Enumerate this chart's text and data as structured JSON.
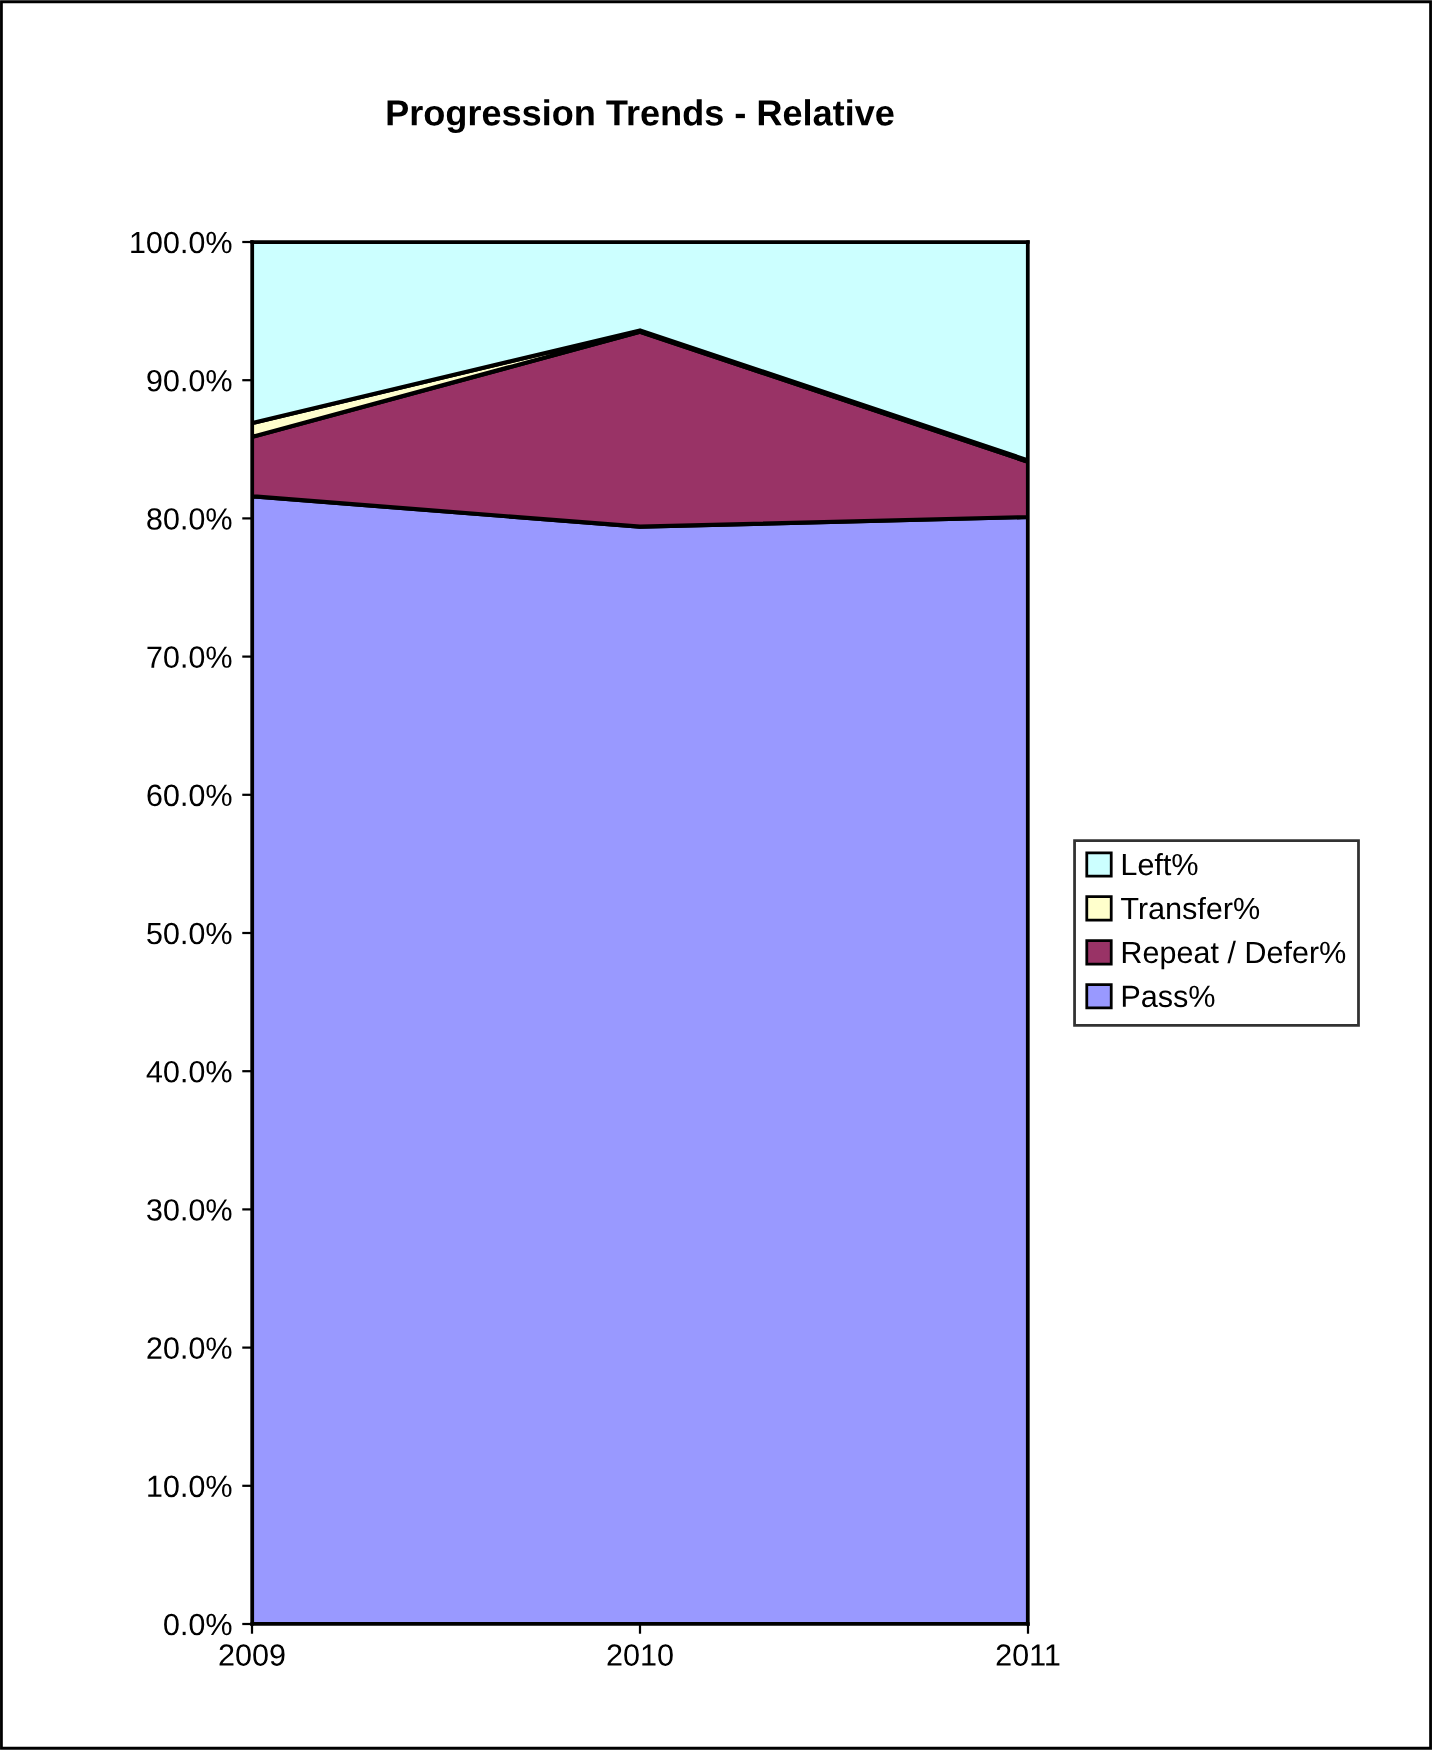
{
  "chart_data": {
    "type": "area",
    "stacked": true,
    "title": "Progression Trends - Relative",
    "categories": [
      "2009",
      "2010",
      "2011"
    ],
    "series": [
      {
        "name": "Pass%",
        "color": "#9999ff",
        "values": [
          81.6,
          79.4,
          80.1
        ]
      },
      {
        "name": "Repeat / Defer%",
        "color": "#993366",
        "values": [
          4.3,
          14.1,
          4.0
        ]
      },
      {
        "name": "Transfer%",
        "color": "#ffffcc",
        "values": [
          1.0,
          0.1,
          0.1
        ]
      },
      {
        "name": "Left%",
        "color": "#ccffff",
        "values": [
          13.1,
          6.4,
          15.8
        ]
      }
    ],
    "ylim": [
      0,
      100
    ],
    "yticks": [
      {
        "value": 0,
        "label": "0.0%"
      },
      {
        "value": 10,
        "label": "10.0%"
      },
      {
        "value": 20,
        "label": "20.0%"
      },
      {
        "value": 30,
        "label": "30.0%"
      },
      {
        "value": 40,
        "label": "40.0%"
      },
      {
        "value": 50,
        "label": "50.0%"
      },
      {
        "value": 60,
        "label": "60.0%"
      },
      {
        "value": 70,
        "label": "70.0%"
      },
      {
        "value": 80,
        "label": "80.0%"
      },
      {
        "value": 90,
        "label": "90.0%"
      },
      {
        "value": 100,
        "label": "100.0%"
      }
    ],
    "grid": false,
    "legend": "right"
  }
}
